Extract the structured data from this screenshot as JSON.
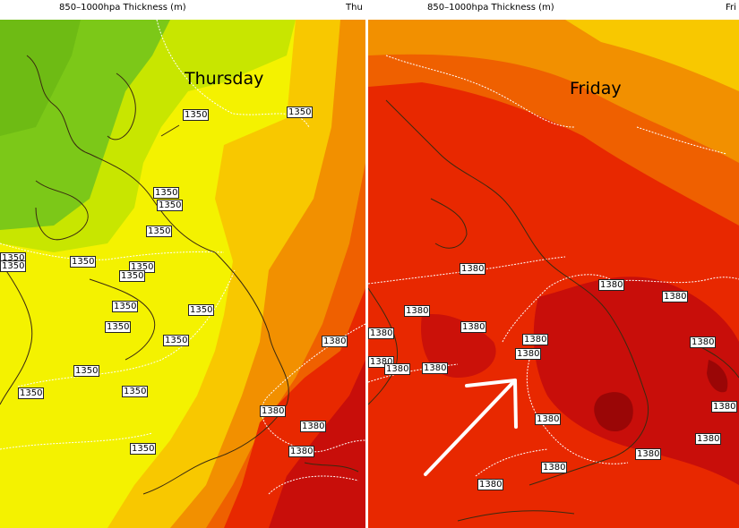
{
  "panels": [
    {
      "header_title": "850–1000hpa Thickness (m)",
      "header_day": "Thu",
      "day_label": "Thursday",
      "contour_labels": [
        "1350",
        "1350",
        "1350",
        "1350",
        "1350",
        "1350",
        "1350",
        "1350",
        "1350",
        "1350",
        "1350",
        "1350",
        "1350",
        "1350",
        "1350",
        "1350",
        "1350",
        "1350",
        "1380",
        "1380",
        "1380",
        "1380"
      ]
    },
    {
      "header_title": "850–1000hpa Thickness (m)",
      "header_day": "Fri",
      "day_label": "Friday",
      "contour_labels": [
        "1380",
        "1380",
        "1380",
        "1380",
        "1380",
        "1380",
        "1380",
        "1380",
        "1380",
        "1380",
        "1380",
        "1380",
        "1380",
        "1380",
        "1380",
        "1380",
        "1380",
        "1380"
      ]
    }
  ],
  "colors": {
    "green": "#7cc818",
    "yellow_green": "#c8e600",
    "yellow": "#f4f200",
    "orange_yellow": "#f8c800",
    "orange": "#f29000",
    "orange_red": "#ef6000",
    "red": "#e82800",
    "dark_red": "#c80e0a",
    "darkest_red": "#9a0606",
    "coastline": "#3a2a10",
    "contour": "#ffffff",
    "arrow": "#ffffff"
  },
  "arrow_icon": "arrow-up-right-icon"
}
